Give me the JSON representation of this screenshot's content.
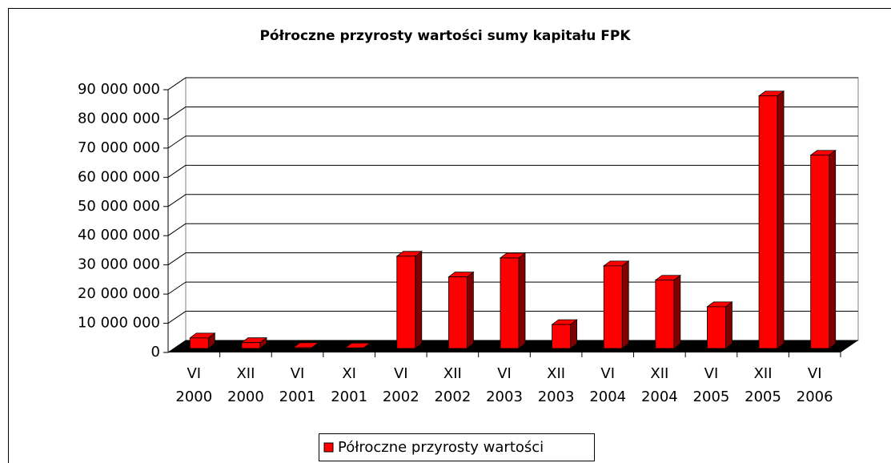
{
  "chart_data": {
    "type": "bar3d",
    "title": "Półroczne przyrosty wartości sumy kapitału FPK",
    "categories": [
      [
        "VI",
        "2000"
      ],
      [
        "XII",
        "2000"
      ],
      [
        "VI",
        "2001"
      ],
      [
        "XI",
        "2001"
      ],
      [
        "VI",
        "2002"
      ],
      [
        "XII",
        "2002"
      ],
      [
        "VI",
        "2003"
      ],
      [
        "XII",
        "2003"
      ],
      [
        "VI",
        "2004"
      ],
      [
        "XII",
        "2004"
      ],
      [
        "VI",
        "2005"
      ],
      [
        "XII",
        "2005"
      ],
      [
        "VI",
        "2006"
      ]
    ],
    "series": [
      {
        "name": "Półroczne przyrosty wartości",
        "color": "#ff0000",
        "values": [
          3600000,
          2000000,
          300000,
          200000,
          31600000,
          24500000,
          31000000,
          8200000,
          28300000,
          23400000,
          14300000,
          86500000,
          66200000
        ]
      }
    ],
    "ylim": [
      0,
      90000000
    ],
    "yticks": [
      0,
      {
        "value": 10000000,
        "label": "10 000 000"
      },
      {
        "value": 20000000,
        "label": "20 000 000"
      },
      {
        "value": 30000000,
        "label": "30 000 000"
      },
      {
        "value": 40000000,
        "label": "40 000 000"
      },
      {
        "value": 50000000,
        "label": "50 000 000"
      },
      {
        "value": 60000000,
        "label": "60 000 000"
      },
      {
        "value": 70000000,
        "label": "70 000 000"
      },
      {
        "value": 80000000,
        "label": "80 000 000"
      },
      {
        "value": 90000000,
        "label": "90 000 000"
      }
    ],
    "grid": true,
    "legend": "bottom"
  }
}
